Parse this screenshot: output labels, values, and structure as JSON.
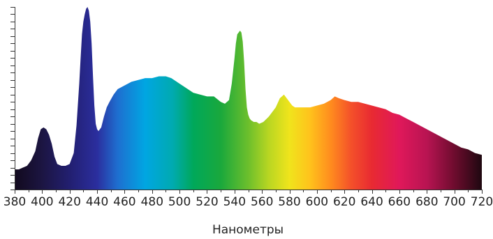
{
  "chart_data": {
    "type": "area",
    "title": "",
    "xlabel": "Нанометры",
    "ylabel": "",
    "xlim": [
      380,
      720
    ],
    "ylim": [
      0,
      100
    ],
    "grid": false,
    "legend": "none",
    "x_ticks": [
      "380",
      "400",
      "420",
      "440",
      "460",
      "480",
      "500",
      "520",
      "540",
      "560",
      "580",
      "600",
      "620",
      "640",
      "660",
      "680",
      "700",
      "720"
    ],
    "series": [
      {
        "x": [
          380,
          383,
          386,
          389,
          392,
          395,
          397,
          399,
          401,
          403,
          405,
          407,
          409,
          411,
          414,
          417,
          420,
          423,
          425,
          427,
          428,
          429,
          430,
          431,
          432,
          433,
          434,
          435,
          436,
          437,
          438,
          439,
          440,
          441,
          443,
          445,
          447,
          449,
          452,
          455,
          460,
          465,
          470,
          475,
          480,
          485,
          490,
          494,
          498,
          502,
          506,
          510,
          515,
          520,
          525,
          530,
          533,
          536,
          538,
          540,
          541,
          542,
          543,
          544,
          545,
          546,
          547,
          548,
          549,
          550,
          551,
          552,
          554,
          556,
          558,
          561,
          565,
          570,
          573,
          576,
          578,
          580,
          582,
          584,
          586,
          590,
          595,
          600,
          605,
          610,
          613,
          616,
          620,
          625,
          630,
          635,
          640,
          645,
          650,
          655,
          660,
          665,
          670,
          675,
          680,
          685,
          690,
          695,
          700,
          705,
          710,
          715,
          720
        ],
        "values": [
          11,
          11,
          12,
          13,
          16,
          21,
          28,
          33,
          34,
          33,
          30,
          25,
          18,
          14,
          13,
          13,
          14,
          20,
          35,
          58,
          72,
          85,
          92,
          96,
          99,
          100,
          98,
          92,
          80,
          62,
          46,
          36,
          33,
          32,
          34,
          40,
          45,
          48,
          52,
          55,
          57,
          59,
          60,
          61,
          61,
          62,
          62,
          61,
          59,
          57,
          55,
          53,
          52,
          51,
          51,
          48,
          47,
          49,
          58,
          72,
          80,
          85,
          86,
          87,
          86,
          81,
          70,
          55,
          45,
          41,
          39,
          38,
          37,
          37,
          36,
          37,
          40,
          45,
          50,
          52,
          50,
          48,
          46,
          45,
          45,
          45,
          45,
          46,
          47,
          49,
          51,
          50,
          49,
          48,
          48,
          47,
          46,
          45,
          44,
          42,
          41,
          39,
          37,
          35,
          33,
          31,
          29,
          27,
          25,
          23,
          22,
          20,
          19
        ]
      }
    ],
    "spectrum_colors": [
      {
        "nm": 380,
        "color": "#120a1e"
      },
      {
        "nm": 400,
        "color": "#1c1542"
      },
      {
        "nm": 420,
        "color": "#221f70"
      },
      {
        "nm": 440,
        "color": "#2b2e9e"
      },
      {
        "nm": 455,
        "color": "#1e6fd0"
      },
      {
        "nm": 475,
        "color": "#00a6e2"
      },
      {
        "nm": 495,
        "color": "#00aab0"
      },
      {
        "nm": 510,
        "color": "#00a85a"
      },
      {
        "nm": 530,
        "color": "#1aa83c"
      },
      {
        "nm": 550,
        "color": "#6cbf2c"
      },
      {
        "nm": 565,
        "color": "#b9d622"
      },
      {
        "nm": 580,
        "color": "#f0e41c"
      },
      {
        "nm": 595,
        "color": "#ffc21c"
      },
      {
        "nm": 610,
        "color": "#ff8c1e"
      },
      {
        "nm": 625,
        "color": "#f4502a"
      },
      {
        "nm": 640,
        "color": "#e82a32"
      },
      {
        "nm": 660,
        "color": "#e0185a"
      },
      {
        "nm": 680,
        "color": "#b81452"
      },
      {
        "nm": 700,
        "color": "#6e0c2e"
      },
      {
        "nm": 720,
        "color": "#1e0810"
      }
    ]
  }
}
